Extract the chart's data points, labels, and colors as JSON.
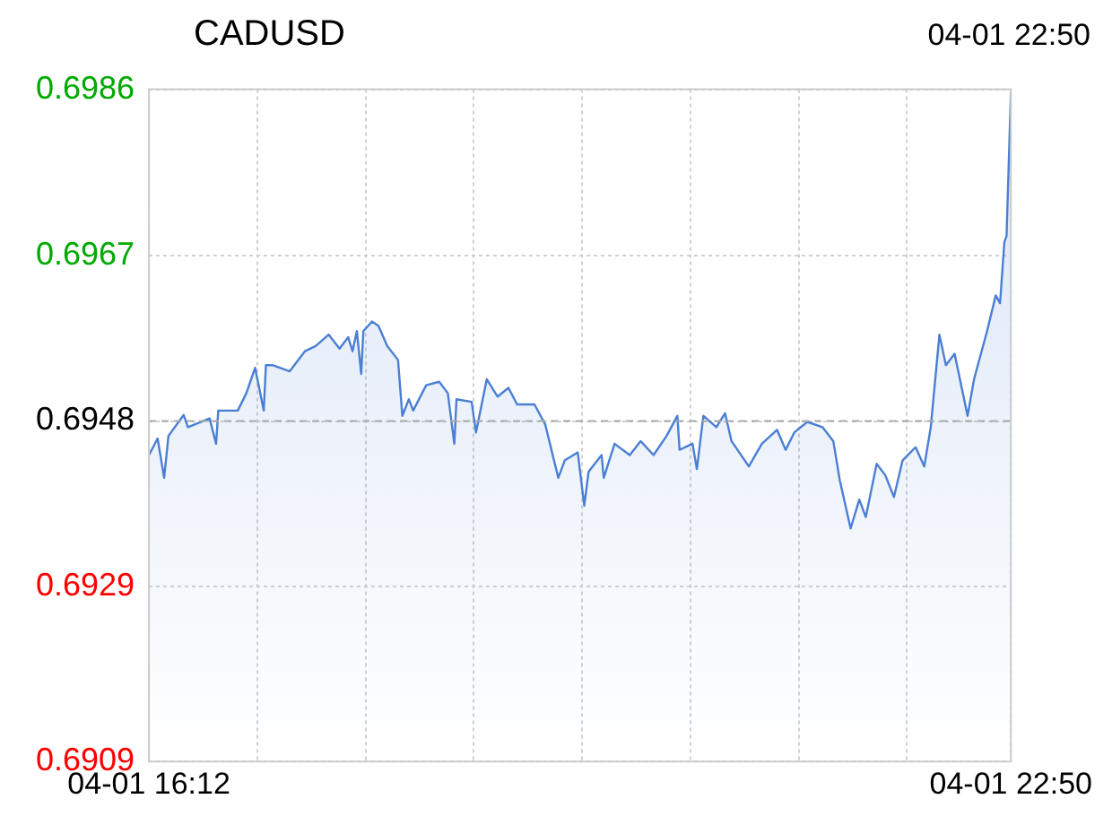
{
  "chart_data": {
    "type": "area",
    "title": "CADUSD",
    "subtitle": "04-01 22:50",
    "x": [
      "--04-01T16:12",
      "--04-01T16:16",
      "--04-01T16:19",
      "--04-01T16:21",
      "--04-01T16:28",
      "--04-01T16:30",
      "--04-01T16:40",
      "--04-01T16:43",
      "--04-01T16:44",
      "--04-01T16:53",
      "--04-01T16:57",
      "--04-01T17:01",
      "--04-01T17:05",
      "--04-01T17:06",
      "--04-01T17:09",
      "--04-01T17:17",
      "--04-01T17:24",
      "--04-01T17:29",
      "--04-01T17:35",
      "--04-01T17:40",
      "--04-01T17:44",
      "--04-01T17:46",
      "--04-01T17:48",
      "--04-01T17:50",
      "--04-01T17:51",
      "--04-01T17:55",
      "--04-01T17:58",
      "--04-01T18:02",
      "--04-01T18:07",
      "--04-01T18:09",
      "--04-01T18:12",
      "--04-01T18:14",
      "--04-01T18:20",
      "--04-01T18:26",
      "--04-01T18:30",
      "--04-01T18:33",
      "--04-01T18:34",
      "--04-01T18:41",
      "--04-01T18:43",
      "--04-01T18:48",
      "--04-01T18:53",
      "--04-01T18:58",
      "--04-01T19:02",
      "--04-01T19:10",
      "--04-01T19:15",
      "--04-01T19:21",
      "--04-01T19:24",
      "--04-01T19:30",
      "--04-01T19:33",
      "--04-01T19:35",
      "--04-01T19:41",
      "--04-01T19:42",
      "--04-01T19:47",
      "--04-01T19:54",
      "--04-01T19:59",
      "--04-01T20:05",
      "--04-01T20:11",
      "--04-01T20:16",
      "--04-01T20:17",
      "--04-01T20:23",
      "--04-01T20:25",
      "--04-01T20:28",
      "--04-01T20:34",
      "--04-01T20:38",
      "--04-01T20:41",
      "--04-01T20:49",
      "--04-01T20:55",
      "--04-01T21:02",
      "--04-01T21:06",
      "--04-01T21:10",
      "--04-01T21:16",
      "--04-01T21:23",
      "--04-01T21:28",
      "--04-01T21:31",
      "--04-01T21:36",
      "--04-01T21:40",
      "--04-01T21:43",
      "--04-01T21:48",
      "--04-01T21:52",
      "--04-01T21:56",
      "--04-01T22:00",
      "--04-01T22:06",
      "--04-01T22:10",
      "--04-01T22:13",
      "--04-01T22:17",
      "--04-01T22:20",
      "--04-01T22:24",
      "--04-01T22:30",
      "--04-01T22:33",
      "--04-01T22:39",
      "--04-01T22:43",
      "--04-01T22:45",
      "--04-01T22:47",
      "--04-01T22:48",
      "--04-01T22:50"
    ],
    "series": [
      {
        "color": "#4a7fd4",
        "values": [
          0.69441,
          0.6946,
          0.69415,
          0.69463,
          0.69487,
          0.69473,
          0.69483,
          0.69454,
          0.69492,
          0.69492,
          0.69512,
          0.69541,
          0.69492,
          0.69544,
          0.69544,
          0.69537,
          0.6956,
          0.69566,
          0.69579,
          0.69563,
          0.69576,
          0.6956,
          0.69583,
          0.69534,
          0.69583,
          0.69594,
          0.69589,
          0.69566,
          0.6955,
          0.69486,
          0.69505,
          0.69492,
          0.69521,
          0.69525,
          0.69512,
          0.69454,
          0.69505,
          0.69502,
          0.69467,
          0.69528,
          0.69508,
          0.69518,
          0.69499,
          0.69499,
          0.69476,
          0.69415,
          0.69435,
          0.69444,
          0.69383,
          0.69422,
          0.69441,
          0.69415,
          0.69454,
          0.69441,
          0.69457,
          0.69441,
          0.69463,
          0.69486,
          0.69447,
          0.69454,
          0.69425,
          0.69486,
          0.69473,
          0.69489,
          0.69457,
          0.69428,
          0.69454,
          0.6947,
          0.69447,
          0.69467,
          0.69479,
          0.69473,
          0.69457,
          0.69412,
          0.69357,
          0.6939,
          0.6937,
          0.69431,
          0.69418,
          0.69393,
          0.69435,
          0.6945,
          0.69428,
          0.69473,
          0.69579,
          0.69544,
          0.69557,
          0.69486,
          0.69528,
          0.69583,
          0.69624,
          0.69615,
          0.69685,
          0.69692,
          0.69856
        ]
      }
    ],
    "xlim": [
      "--04-01T16:12",
      "--04-01T22:50"
    ],
    "xticks": [
      {
        "value": "--04-01T16:12",
        "label": "04-01 16:12"
      },
      {
        "value": "--04-01T17:02",
        "label": null
      },
      {
        "value": "--04-01T17:52",
        "label": null
      },
      {
        "value": "--04-01T18:42",
        "label": null
      },
      {
        "value": "--04-01T19:32",
        "label": null
      },
      {
        "value": "--04-01T20:22",
        "label": null
      },
      {
        "value": "--04-01T21:12",
        "label": null
      },
      {
        "value": "--04-01T22:02",
        "label": null
      },
      {
        "value": "--04-01T22:50",
        "label": "04-01 22:50"
      }
    ],
    "ylim": [
      0.6909,
      0.6986
    ],
    "yticks": [
      0.6909,
      0.6929,
      0.6948,
      0.6967,
      0.6986
    ],
    "ref_lines": [
      {
        "axis": "y",
        "value": 0.6948,
        "color": "#aaaaaa",
        "line_style": "dashed"
      }
    ],
    "grid": true
  }
}
